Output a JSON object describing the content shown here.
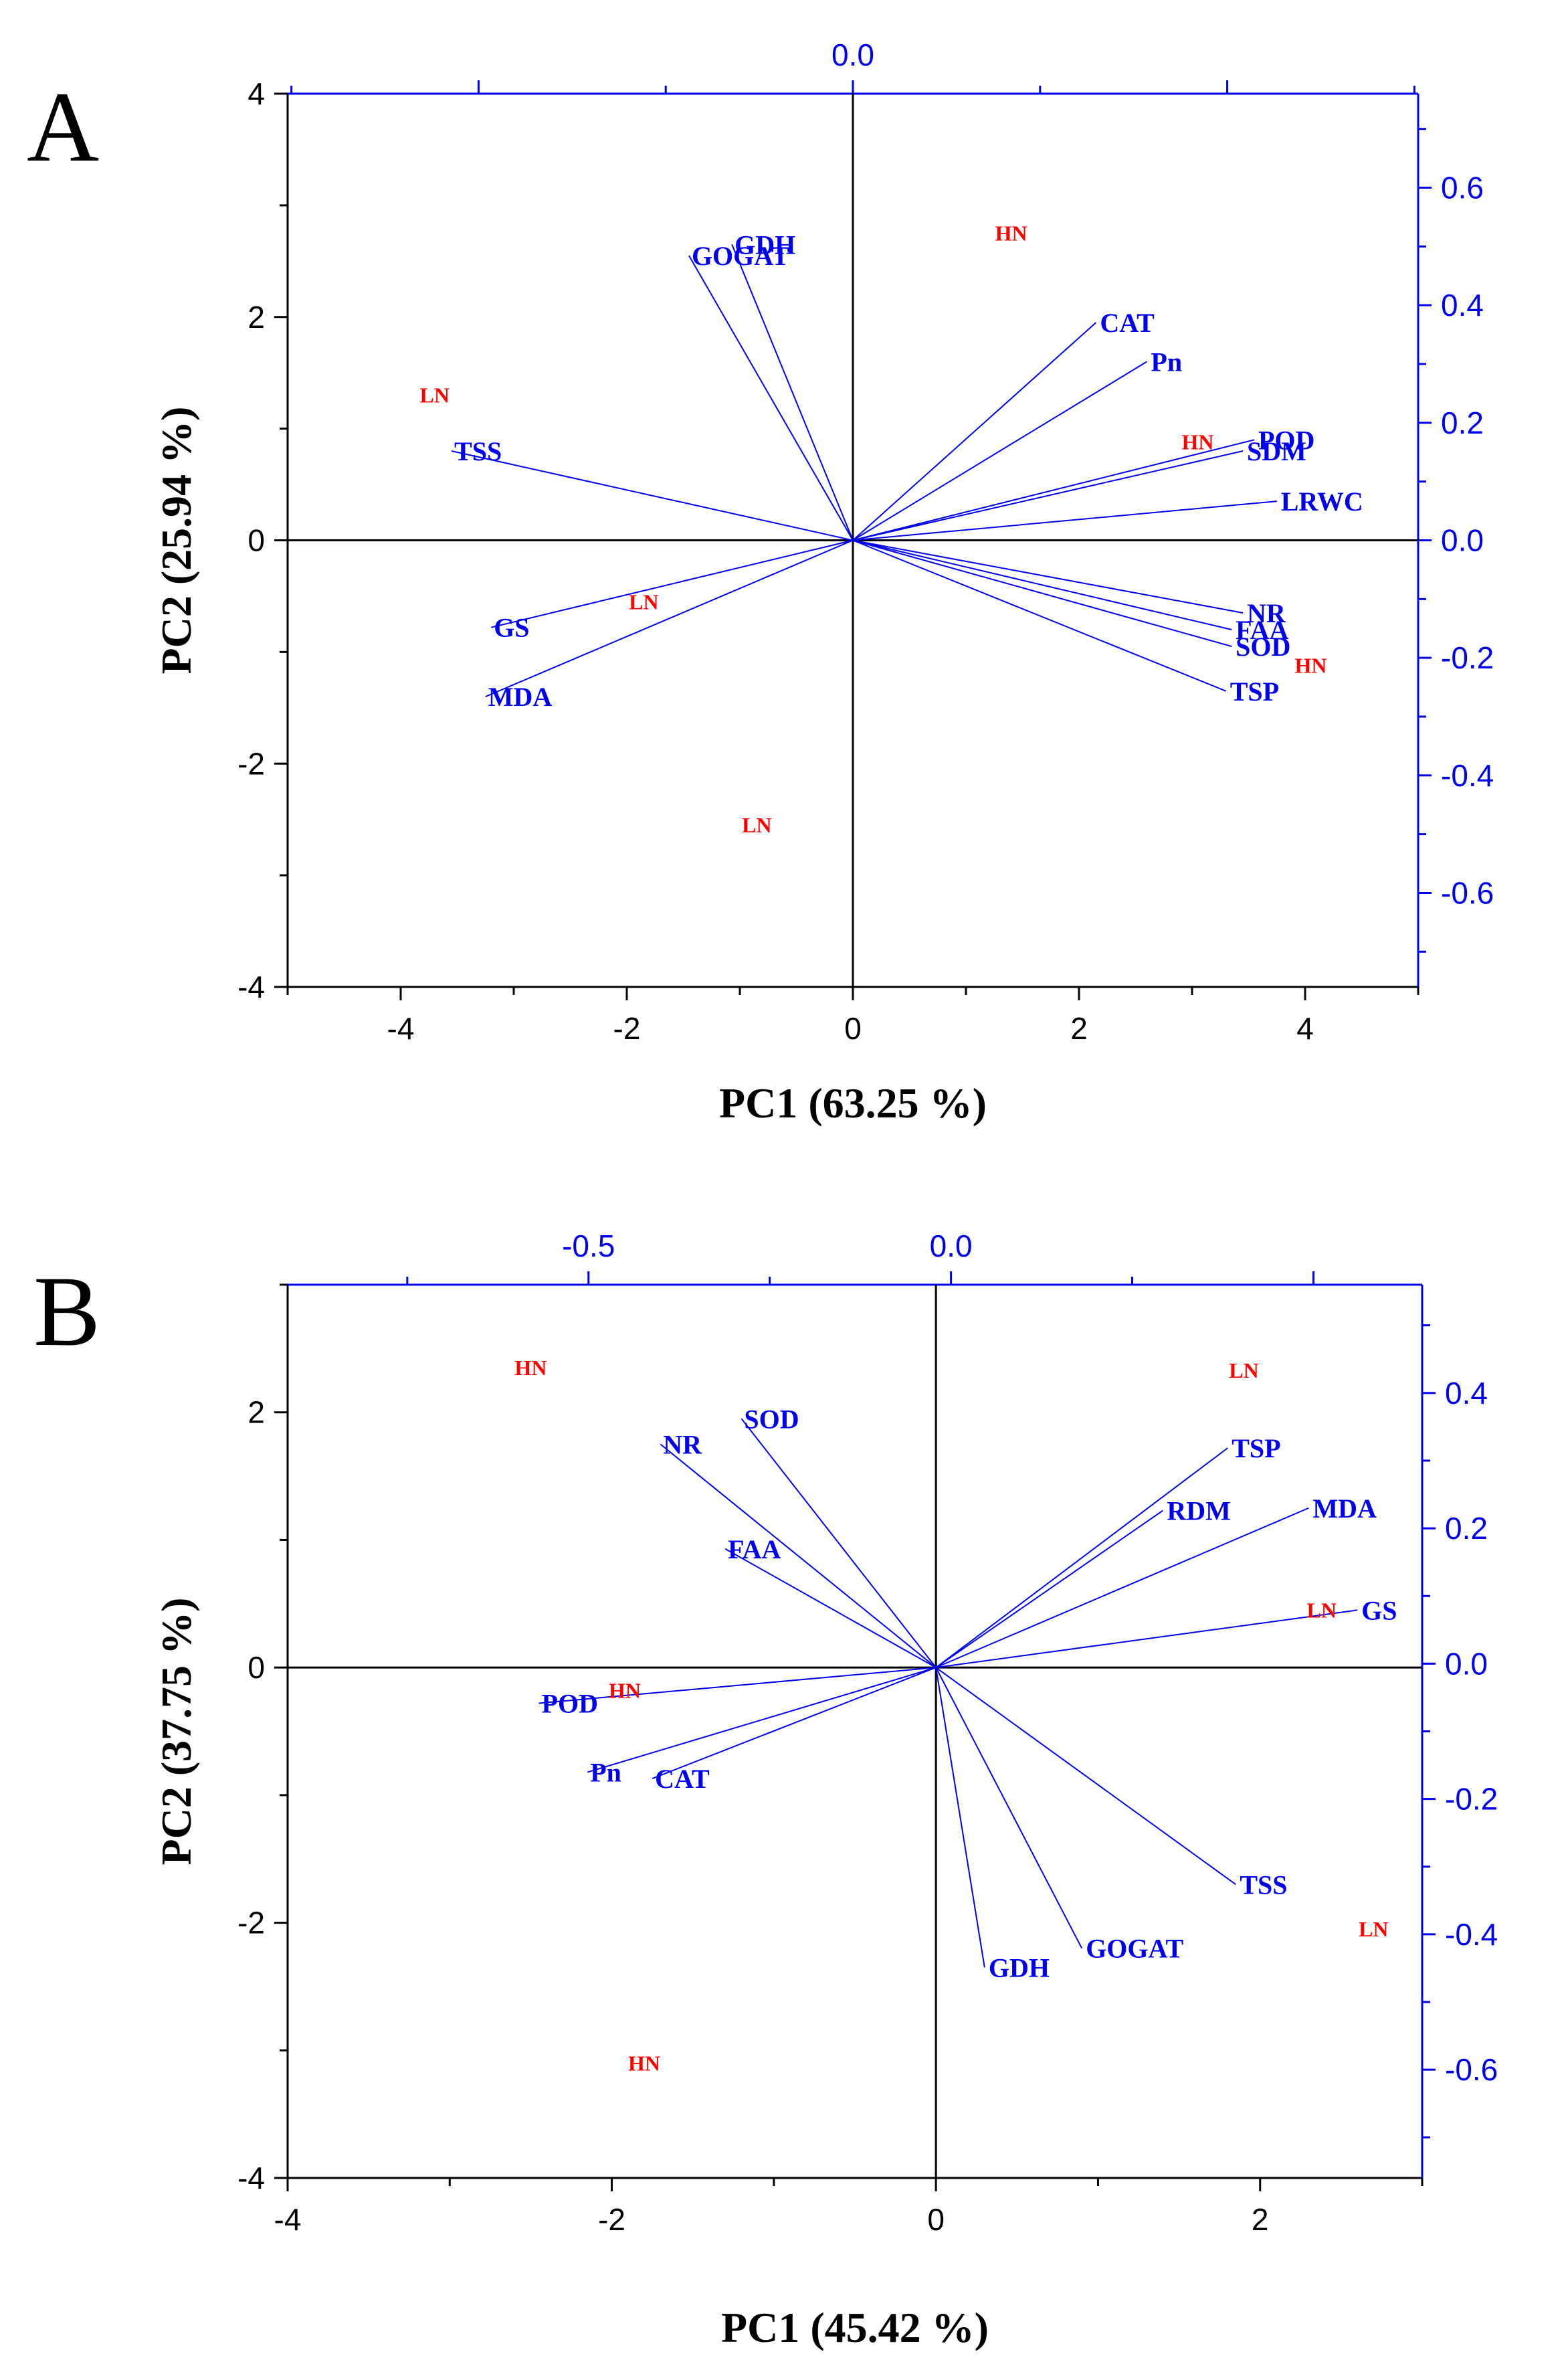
{
  "colors": {
    "loading": "#0000ee",
    "score": "#ff0000",
    "axis": "#000000"
  },
  "chart_data": [
    {
      "panel": "A",
      "type": "scatter",
      "subtype": "pca-biplot",
      "xlabel": "PC1 (63.25 %)",
      "ylabel": "PC2 (25.94 %)",
      "xlim": [
        -5,
        5
      ],
      "ylim": [
        -4,
        4
      ],
      "xticks": [
        -4,
        -2,
        0,
        2,
        4
      ],
      "yticks": [
        -4,
        -2,
        0,
        2,
        4
      ],
      "top_xlim": [
        -0.755,
        0.755
      ],
      "top_ticks": [
        {
          "value": 0,
          "label": "0.0"
        }
      ],
      "right_ylim": [
        -0.76,
        0.76
      ],
      "right_ticks": [
        {
          "value": 0.6,
          "label": "0.6"
        },
        {
          "value": 0.4,
          "label": "0.4"
        },
        {
          "value": 0.2,
          "label": "0.2"
        },
        {
          "value": 0.0,
          "label": "0.0"
        },
        {
          "value": -0.2,
          "label": "-0.2"
        },
        {
          "value": -0.4,
          "label": "-0.4"
        },
        {
          "value": -0.6,
          "label": "-0.6"
        }
      ],
      "loadings": [
        {
          "name": "GDH",
          "x": -1.07,
          "y": 2.65
        },
        {
          "name": "GOGAT",
          "x": -1.45,
          "y": 2.55
        },
        {
          "name": "CAT",
          "x": 2.15,
          "y": 1.95
        },
        {
          "name": "Pn",
          "x": 2.6,
          "y": 1.6
        },
        {
          "name": "POD",
          "x": 3.55,
          "y": 0.9
        },
        {
          "name": "SDM",
          "x": 3.45,
          "y": 0.8
        },
        {
          "name": "LRWC",
          "x": 3.75,
          "y": 0.35
        },
        {
          "name": "NR",
          "x": 3.45,
          "y": -0.65
        },
        {
          "name": "FAA",
          "x": 3.35,
          "y": -0.8
        },
        {
          "name": "SOD",
          "x": 3.35,
          "y": -0.95
        },
        {
          "name": "TSP",
          "x": 3.3,
          "y": -1.35
        },
        {
          "name": "TSS",
          "x": -3.55,
          "y": 0.8
        },
        {
          "name": "GS",
          "x": -3.2,
          "y": -0.78
        },
        {
          "name": "MDA",
          "x": -3.25,
          "y": -1.4
        }
      ],
      "scores": [
        {
          "label": "HN",
          "x": 1.4,
          "y": 2.75
        },
        {
          "label": "HN",
          "x": 3.05,
          "y": 0.88
        },
        {
          "label": "HN",
          "x": 4.05,
          "y": -1.12
        },
        {
          "label": "LN",
          "x": -3.7,
          "y": 1.3
        },
        {
          "label": "LN",
          "x": -1.85,
          "y": -0.55
        },
        {
          "label": "LN",
          "x": -0.85,
          "y": -2.55
        }
      ]
    },
    {
      "panel": "B",
      "type": "scatter",
      "subtype": "pca-biplot",
      "xlabel": "PC1 (45.42 %)",
      "ylabel": "PC2 (37.75 %)",
      "xlim": [
        -4,
        3
      ],
      "ylim": [
        -4,
        3
      ],
      "xticks": [
        -4,
        -2,
        0,
        2
      ],
      "yticks": [
        -4,
        -2,
        0,
        2
      ],
      "top_xlim": [
        -0.915,
        0.65
      ],
      "top_ticks": [
        {
          "value": -0.5,
          "label": "-0.5"
        },
        {
          "value": 0,
          "label": "0.0"
        }
      ],
      "right_ylim": [
        -0.76,
        0.56
      ],
      "right_ticks": [
        {
          "value": 0.4,
          "label": "0.4"
        },
        {
          "value": 0.2,
          "label": "0.2"
        },
        {
          "value": 0.0,
          "label": "0.0"
        },
        {
          "value": -0.2,
          "label": "-0.2"
        },
        {
          "value": -0.4,
          "label": "-0.4"
        },
        {
          "value": -0.6,
          "label": "-0.6"
        }
      ],
      "loadings": [
        {
          "name": "SOD",
          "x": -1.2,
          "y": 1.95
        },
        {
          "name": "NR",
          "x": -1.7,
          "y": 1.75
        },
        {
          "name": "FAA",
          "x": -1.3,
          "y": 0.93
        },
        {
          "name": "TSP",
          "x": 1.8,
          "y": 1.72
        },
        {
          "name": "RDM",
          "x": 1.4,
          "y": 1.23
        },
        {
          "name": "MDA",
          "x": 2.3,
          "y": 1.25
        },
        {
          "name": "GS",
          "x": 2.6,
          "y": 0.45
        },
        {
          "name": "POD",
          "x": -2.45,
          "y": -0.28
        },
        {
          "name": "Pn",
          "x": -2.15,
          "y": -0.82
        },
        {
          "name": "CAT",
          "x": -1.75,
          "y": -0.87
        },
        {
          "name": "TSS",
          "x": 1.85,
          "y": -1.7
        },
        {
          "name": "GOGAT",
          "x": 0.9,
          "y": -2.2
        },
        {
          "name": "GDH",
          "x": 0.3,
          "y": -2.35
        }
      ],
      "scores": [
        {
          "label": "HN",
          "x": -2.5,
          "y": 2.35
        },
        {
          "label": "HN",
          "x": -1.92,
          "y": -0.18
        },
        {
          "label": "HN",
          "x": -1.8,
          "y": -3.1
        },
        {
          "label": "LN",
          "x": 1.9,
          "y": 2.33
        },
        {
          "label": "LN",
          "x": 2.38,
          "y": 0.45
        },
        {
          "label": "LN",
          "x": 2.7,
          "y": -2.05
        }
      ]
    }
  ]
}
